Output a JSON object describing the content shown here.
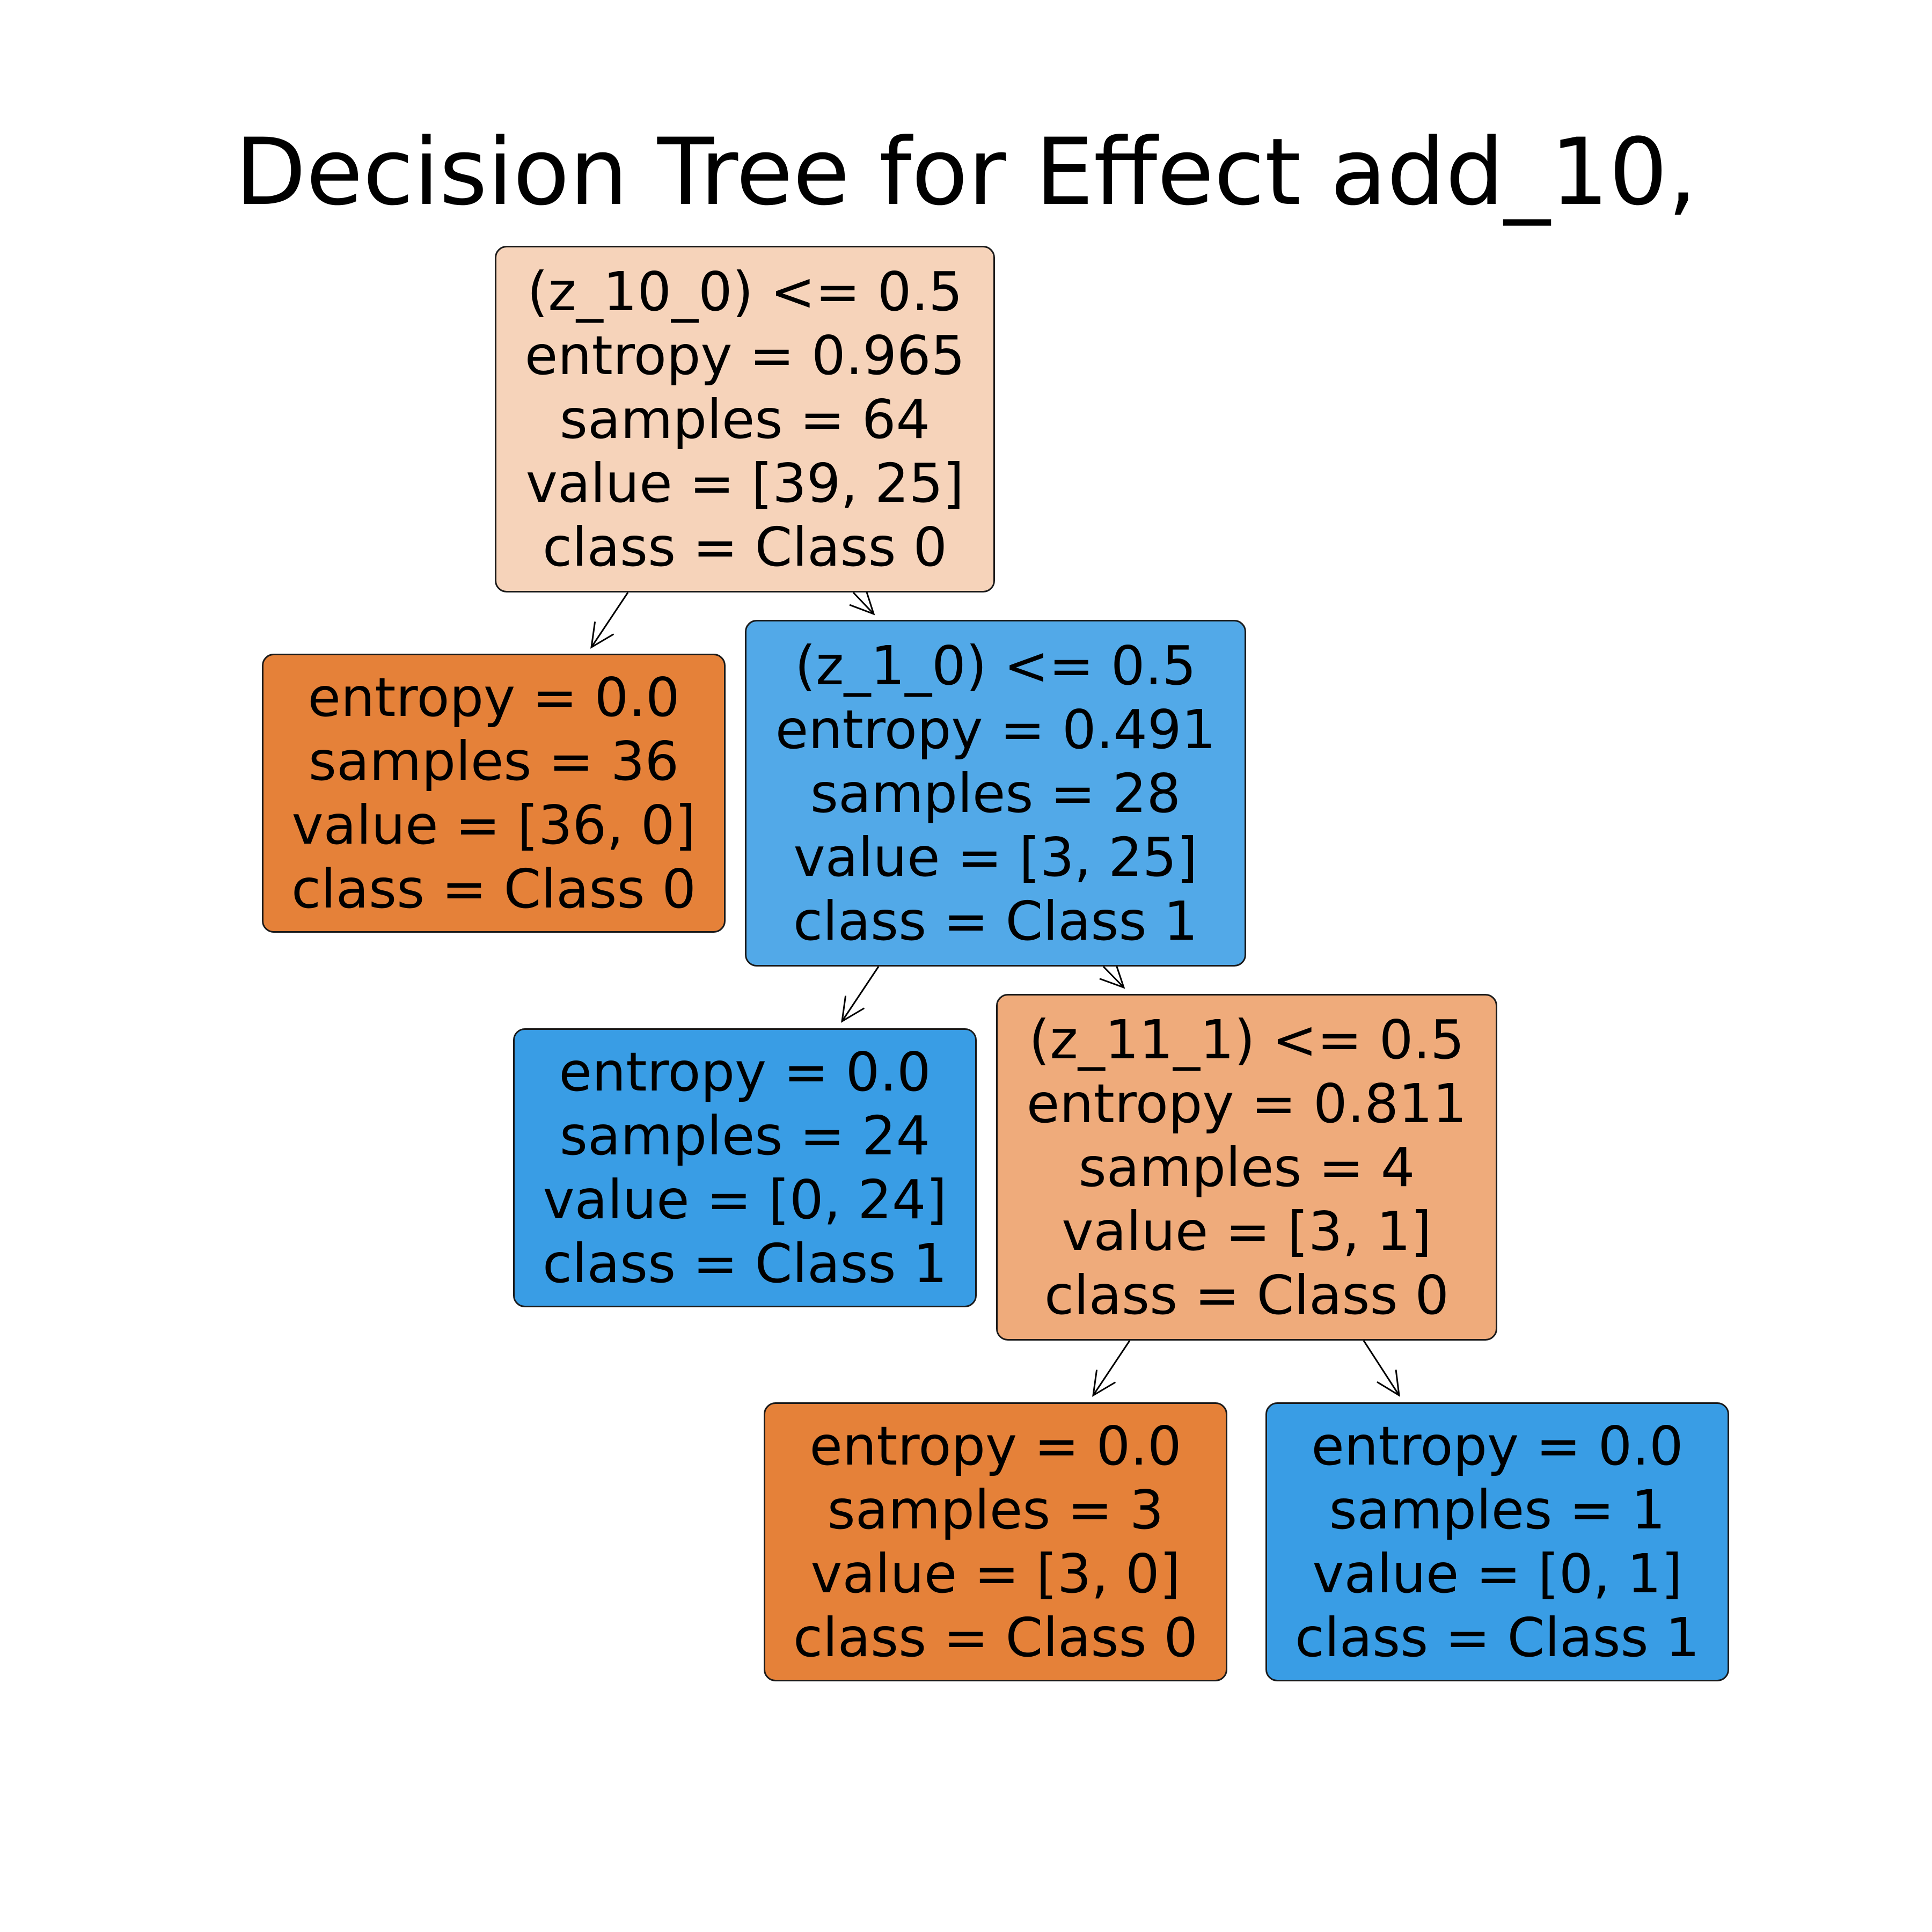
{
  "title": "Decision Tree for Effect add_10,",
  "colors": {
    "class0_pure": "#e58139",
    "class0_light": "#f6d3ba",
    "class0_mid": "#efab7b",
    "class1_pure": "#399de5",
    "class1_mid": "#52a9e8"
  },
  "nodes": [
    {
      "id": "n0",
      "lines": [
        "(z_10_0) <= 0.5",
        "entropy = 0.965",
        "samples = 64",
        "value = [39, 25]",
        "class = Class 0"
      ],
      "color": "#f6d3ba"
    },
    {
      "id": "n1",
      "lines": [
        "entropy = 0.0",
        "samples = 36",
        "value = [36, 0]",
        "class = Class 0"
      ],
      "color": "#e58139"
    },
    {
      "id": "n2",
      "lines": [
        "(z_1_0) <= 0.5",
        "entropy = 0.491",
        "samples = 28",
        "value = [3, 25]",
        "class = Class 1"
      ],
      "color": "#52a9e8"
    },
    {
      "id": "n3",
      "lines": [
        "entropy = 0.0",
        "samples = 24",
        "value = [0, 24]",
        "class = Class 1"
      ],
      "color": "#399de5"
    },
    {
      "id": "n4",
      "lines": [
        "(z_11_1) <= 0.5",
        "entropy = 0.811",
        "samples = 4",
        "value = [3, 1]",
        "class = Class 0"
      ],
      "color": "#efab7b"
    },
    {
      "id": "n5",
      "lines": [
        "entropy = 0.0",
        "samples = 3",
        "value = [3, 0]",
        "class = Class 0"
      ],
      "color": "#e58139"
    },
    {
      "id": "n6",
      "lines": [
        "entropy = 0.0",
        "samples = 1",
        "value = [0, 1]",
        "class = Class 1"
      ],
      "color": "#399de5"
    }
  ],
  "edges": [
    {
      "from": "n0",
      "to": "n1"
    },
    {
      "from": "n0",
      "to": "n2"
    },
    {
      "from": "n2",
      "to": "n3"
    },
    {
      "from": "n2",
      "to": "n4"
    },
    {
      "from": "n4",
      "to": "n5"
    },
    {
      "from": "n4",
      "to": "n6"
    }
  ]
}
